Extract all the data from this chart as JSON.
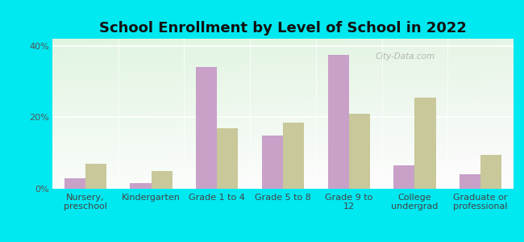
{
  "title": "School Enrollment by Level of School in 2022",
  "categories": [
    "Nursery,\npreschool",
    "Kindergarten",
    "Grade 1 to 4",
    "Grade 5 to 8",
    "Grade 9 to\n12",
    "College\nundergrad",
    "Graduate or\nprofessional"
  ],
  "zip_values": [
    3.0,
    1.5,
    34.0,
    15.0,
    37.5,
    6.5,
    4.0
  ],
  "ma_values": [
    7.0,
    5.0,
    17.0,
    18.5,
    21.0,
    25.5,
    9.5
  ],
  "zip_color": "#c8a0c8",
  "ma_color": "#c8c89a",
  "background_outer": "#00e8f0",
  "ylim": [
    0,
    42
  ],
  "yticks": [
    0,
    20,
    40
  ],
  "yticklabels": [
    "0%",
    "20%",
    "40%"
  ],
  "bar_width": 0.32,
  "watermark": "City-Data.com",
  "title_fontsize": 13,
  "tick_fontsize": 8,
  "legend_fontsize": 9
}
